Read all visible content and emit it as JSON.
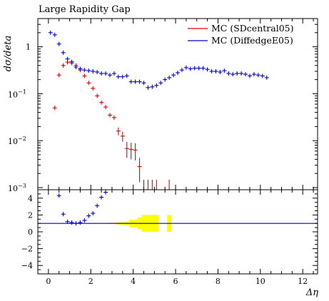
{
  "chart_data": [
    {
      "type": "scatter",
      "title": "Large Rapidity Gap",
      "xlabel": "Δη",
      "ylabel": "dσ/deta",
      "yscale": "log",
      "xlim": [
        -0.5,
        12.7
      ],
      "ylim": [
        0.0009,
        4.0
      ],
      "ytick_labels": [
        {
          "v": 1,
          "label": "1"
        },
        {
          "v": 0.1,
          "label": "10",
          "exp": "−1"
        },
        {
          "v": 0.01,
          "label": "10",
          "exp": "−2"
        },
        {
          "v": 0.001,
          "label": "10",
          "exp": "−3"
        }
      ],
      "legend_position": "top-right",
      "series": [
        {
          "name": "MC (SDcentral05)",
          "color": "#e00000",
          "x": [
            0.3,
            0.5,
            0.7,
            0.9,
            1.1,
            1.3,
            1.5,
            1.7,
            1.9,
            2.1,
            2.3,
            2.5,
            2.7,
            2.9,
            3.1,
            3.3,
            3.5,
            3.7,
            3.9,
            4.1,
            4.3
          ],
          "y": [
            0.05,
            0.25,
            0.4,
            0.47,
            0.45,
            0.4,
            0.32,
            0.24,
            0.17,
            0.13,
            0.09,
            0.065,
            0.052,
            0.035,
            0.031,
            0.016,
            0.0125,
            0.0068,
            0.0065,
            0.0063,
            0.0028
          ],
          "err": [
            0.002,
            0.005,
            0.008,
            0.01,
            0.01,
            0.009,
            0.008,
            0.007,
            0.006,
            0.005,
            0.004,
            0.004,
            0.004,
            0.003,
            0.003,
            0.003,
            0.003,
            0.0025,
            0.0025,
            0.0025,
            0.0015
          ],
          "lower_limit_x": [
            4.5,
            4.7,
            4.9,
            5.1,
            5.7
          ]
        },
        {
          "name": "MC (DiffedgeE05)",
          "color": "#0000cc",
          "x": [
            0.1,
            0.3,
            0.5,
            0.7,
            0.9,
            1.1,
            1.3,
            1.5,
            1.7,
            1.9,
            2.1,
            2.3,
            2.5,
            2.7,
            2.9,
            3.1,
            3.3,
            3.5,
            3.7,
            3.9,
            4.1,
            4.3,
            4.5,
            4.7,
            4.9,
            5.1,
            5.3,
            5.5,
            5.7,
            5.9,
            6.1,
            6.3,
            6.5,
            6.7,
            6.9,
            7.1,
            7.3,
            7.5,
            7.7,
            7.9,
            8.1,
            8.3,
            8.5,
            8.7,
            8.9,
            9.1,
            9.3,
            9.5,
            9.7,
            9.9,
            10.1,
            10.3
          ],
          "y": [
            2.0,
            1.8,
            1.15,
            0.75,
            0.55,
            0.48,
            0.37,
            0.34,
            0.32,
            0.31,
            0.3,
            0.29,
            0.27,
            0.27,
            0.25,
            0.27,
            0.23,
            0.23,
            0.24,
            0.18,
            0.18,
            0.18,
            0.17,
            0.135,
            0.14,
            0.15,
            0.17,
            0.2,
            0.22,
            0.25,
            0.28,
            0.32,
            0.36,
            0.34,
            0.35,
            0.35,
            0.35,
            0.33,
            0.3,
            0.3,
            0.29,
            0.31,
            0.27,
            0.26,
            0.27,
            0.27,
            0.26,
            0.24,
            0.26,
            0.25,
            0.24,
            0.22
          ]
        }
      ]
    },
    {
      "type": "scatter",
      "xlabel": "Δη",
      "xlim": [
        -0.5,
        12.7
      ],
      "ylim": [
        -5,
        5
      ],
      "xticks": [
        0,
        2,
        4,
        6,
        8,
        10,
        12
      ],
      "yticks": [
        4,
        2,
        0,
        -2,
        -4
      ],
      "reference_line": 1,
      "band_color": "#ffff00",
      "band": [
        {
          "x0": 1.6,
          "x1": 2.0,
          "lo": 0.98,
          "hi": 1.02
        },
        {
          "x0": 2.0,
          "x1": 2.4,
          "lo": 0.97,
          "hi": 1.03
        },
        {
          "x0": 2.4,
          "x1": 2.8,
          "lo": 0.95,
          "hi": 1.05
        },
        {
          "x0": 2.8,
          "x1": 3.2,
          "lo": 0.93,
          "hi": 1.08
        },
        {
          "x0": 3.2,
          "x1": 3.6,
          "lo": 0.85,
          "hi": 1.15
        },
        {
          "x0": 3.6,
          "x1": 3.8,
          "lo": 0.8,
          "hi": 1.2
        },
        {
          "x0": 3.8,
          "x1": 4.2,
          "lo": 0.55,
          "hi": 1.45
        },
        {
          "x0": 4.2,
          "x1": 4.4,
          "lo": 0.3,
          "hi": 1.7
        },
        {
          "x0": 4.4,
          "x1": 5.2,
          "lo": 0.0,
          "hi": 2.0
        },
        {
          "x0": 5.6,
          "x1": 5.8,
          "lo": 0.0,
          "hi": 2.0
        }
      ],
      "series": [
        {
          "name": "MC (DiffedgeE05)",
          "color": "#0000cc",
          "x": [
            0.5,
            0.7,
            0.9,
            1.1,
            1.3,
            1.5,
            1.7,
            1.9,
            2.1,
            2.3,
            2.5,
            2.7
          ],
          "y": [
            4.3,
            2.1,
            1.2,
            1.1,
            1.0,
            1.1,
            1.35,
            1.9,
            2.2,
            3.1,
            4.1,
            4.7
          ]
        },
        {
          "name": "MC (SDcentral05)",
          "color": "#e00000",
          "x": [],
          "y": []
        }
      ]
    }
  ]
}
